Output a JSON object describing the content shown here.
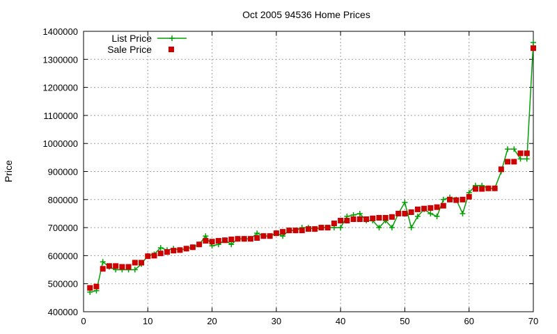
{
  "chart_data": {
    "type": "line",
    "title": "Oct 2005 94536 Home Prices",
    "xlabel": "",
    "ylabel": "Price",
    "xlim": [
      0,
      70
    ],
    "ylim": [
      400000,
      1400000
    ],
    "x_ticks": [
      "0",
      "10",
      "20",
      "30",
      "40",
      "50",
      "60",
      "70"
    ],
    "y_ticks": [
      "400000",
      "500000",
      "600000",
      "700000",
      "800000",
      "900000",
      "1000000",
      "1100000",
      "1200000",
      "1300000",
      "1400000"
    ],
    "grid": true,
    "legend_position": "top-left",
    "series": [
      {
        "name": "List Price",
        "style": "line+cross",
        "color": "#00a000",
        "x": [
          1,
          2,
          3,
          4,
          5,
          6,
          7,
          8,
          9,
          10,
          11,
          12,
          13,
          14,
          15,
          16,
          17,
          18,
          19,
          20,
          21,
          22,
          23,
          24,
          25,
          26,
          27,
          28,
          29,
          30,
          31,
          32,
          33,
          34,
          35,
          36,
          37,
          38,
          39,
          40,
          41,
          42,
          43,
          44,
          45,
          46,
          47,
          48,
          49,
          50,
          51,
          52,
          53,
          54,
          55,
          56,
          57,
          58,
          59,
          60,
          61,
          62,
          63,
          64,
          65,
          66,
          67,
          68,
          69,
          70
        ],
        "y": [
          470000,
          475000,
          578000,
          560000,
          550000,
          550000,
          550000,
          550000,
          570000,
          600000,
          605000,
          628000,
          620000,
          625000,
          620000,
          625000,
          630000,
          640000,
          670000,
          635000,
          640000,
          655000,
          640000,
          660000,
          660000,
          660000,
          680000,
          670000,
          670000,
          680000,
          670000,
          690000,
          690000,
          700000,
          700000,
          695000,
          700000,
          700000,
          700000,
          700000,
          740000,
          745000,
          750000,
          725000,
          725000,
          700000,
          725000,
          700000,
          750000,
          790000,
          700000,
          740000,
          765000,
          750000,
          740000,
          800000,
          808000,
          800000,
          750000,
          825000,
          850000,
          850000,
          840000,
          840000,
          900000,
          980000,
          980000,
          945000,
          945000,
          1360000
        ]
      },
      {
        "name": "Sale Price",
        "style": "square-points",
        "color": "#cc0000",
        "x": [
          1,
          2,
          3,
          4,
          5,
          6,
          7,
          8,
          9,
          10,
          11,
          12,
          13,
          14,
          15,
          16,
          17,
          18,
          19,
          20,
          21,
          22,
          23,
          24,
          25,
          26,
          27,
          28,
          29,
          30,
          31,
          32,
          33,
          34,
          35,
          36,
          37,
          38,
          39,
          40,
          41,
          42,
          43,
          44,
          45,
          46,
          47,
          48,
          49,
          50,
          51,
          52,
          53,
          54,
          55,
          56,
          57,
          58,
          59,
          60,
          61,
          62,
          63,
          64,
          65,
          66,
          67,
          68,
          69,
          70
        ],
        "y": [
          485000,
          490000,
          553000,
          563000,
          563000,
          560000,
          560000,
          575000,
          575000,
          598000,
          600000,
          608000,
          613000,
          618000,
          620000,
          625000,
          630000,
          640000,
          653000,
          650000,
          653000,
          655000,
          658000,
          660000,
          660000,
          660000,
          663000,
          670000,
          670000,
          680000,
          685000,
          690000,
          690000,
          690000,
          695000,
          695000,
          700000,
          700000,
          715000,
          725000,
          725000,
          730000,
          730000,
          730000,
          733000,
          735000,
          735000,
          738000,
          750000,
          750000,
          755000,
          765000,
          768000,
          770000,
          773000,
          778000,
          800000,
          798000,
          800000,
          810000,
          838000,
          838000,
          840000,
          840000,
          908000,
          935000,
          935000,
          965000,
          965000,
          1340000
        ]
      }
    ]
  }
}
